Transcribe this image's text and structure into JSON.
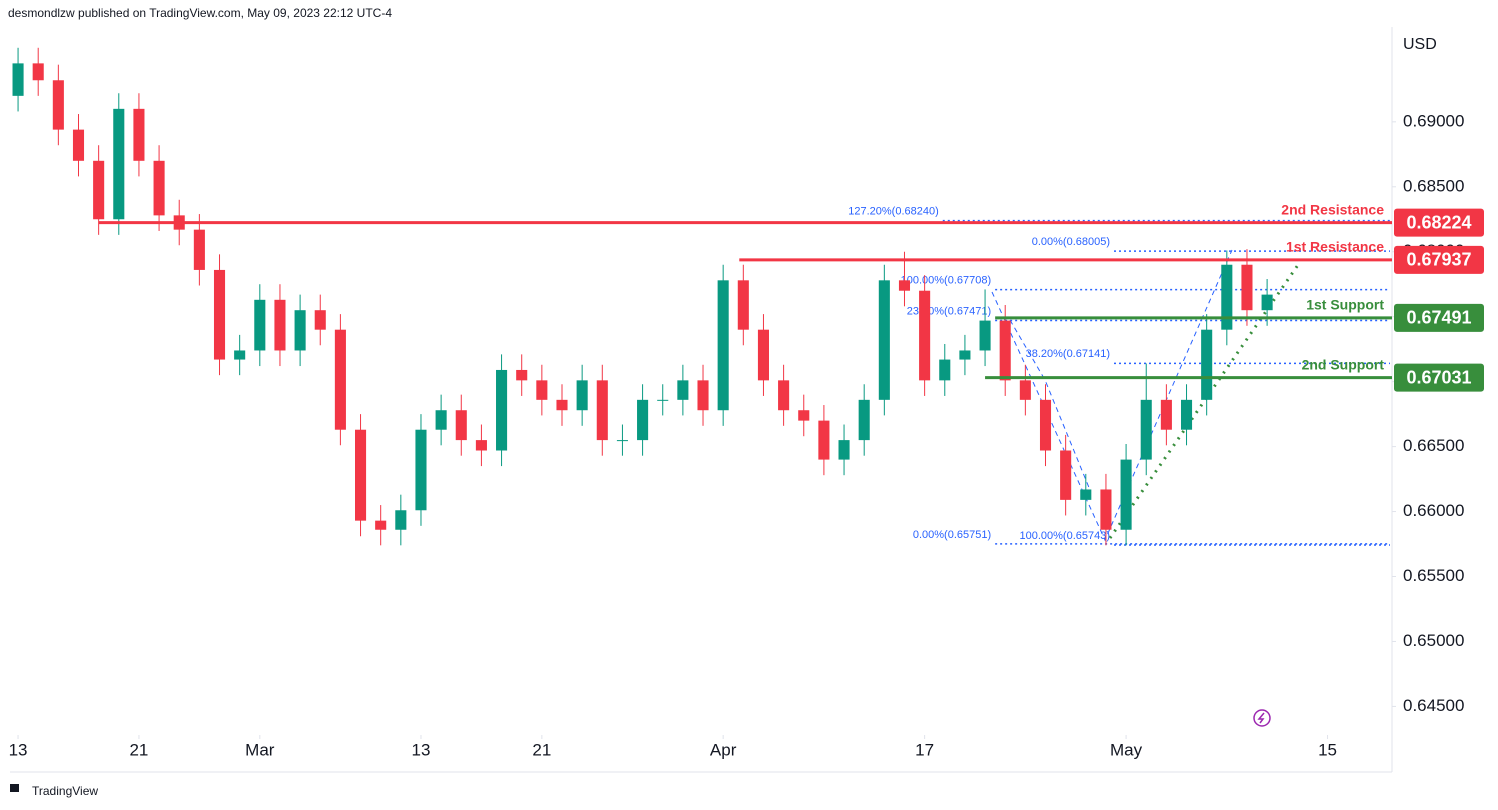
{
  "header": "desmondlzw published on TradingView.com, May 09, 2023 22:12 UTC-4",
  "footer": "TradingView",
  "chart_data": {
    "type": "candlestick",
    "currency": "USD",
    "up_color": "#089981",
    "down_color": "#f23645",
    "x": [
      0,
      1,
      2,
      3,
      4,
      5,
      6,
      7,
      8,
      9,
      10,
      11,
      12,
      13,
      14,
      15,
      16,
      17,
      18,
      19,
      20,
      21,
      22,
      23,
      24,
      25,
      26,
      27,
      28,
      29,
      30,
      31,
      32,
      33,
      34,
      35,
      36,
      37,
      38,
      39,
      40,
      41,
      42,
      43,
      44,
      45,
      46,
      47,
      48,
      49,
      50,
      51,
      52,
      53,
      54,
      55,
      56,
      57,
      58,
      59,
      60,
      61,
      62
    ],
    "open": [
      0.692,
      0.6945,
      0.6932,
      0.6894,
      0.687,
      0.6825,
      0.691,
      0.687,
      0.6828,
      0.6817,
      0.6786,
      0.6717,
      0.6724,
      0.6763,
      0.6724,
      0.6755,
      0.674,
      0.6663,
      0.6593,
      0.6586,
      0.6601,
      0.6663,
      0.6678,
      0.6655,
      0.6647,
      0.6709,
      0.6701,
      0.6686,
      0.6678,
      0.6701,
      0.6655,
      0.6655,
      0.6686,
      0.6686,
      0.6701,
      0.6678,
      0.6778,
      0.674,
      0.6701,
      0.6678,
      0.667,
      0.664,
      0.6655,
      0.6686,
      0.6778,
      0.677,
      0.6701,
      0.6717,
      0.6724,
      0.6747,
      0.6701,
      0.6686,
      0.6647,
      0.6609,
      0.6617,
      0.6586,
      0.664,
      0.6686,
      0.6663,
      0.6686,
      0.674,
      0.679,
      0.6755
    ],
    "high": [
      0.6957,
      0.6957,
      0.6944,
      0.6906,
      0.6882,
      0.6922,
      0.6922,
      0.6882,
      0.684,
      0.6829,
      0.6798,
      0.6736,
      0.6775,
      0.6775,
      0.6767,
      0.6767,
      0.6752,
      0.6675,
      0.6605,
      0.6613,
      0.6675,
      0.669,
      0.669,
      0.6667,
      0.6721,
      0.6721,
      0.6713,
      0.6698,
      0.6713,
      0.6713,
      0.6667,
      0.6698,
      0.6698,
      0.6713,
      0.6713,
      0.679,
      0.679,
      0.6752,
      0.6713,
      0.669,
      0.6682,
      0.6667,
      0.6698,
      0.679,
      0.68,
      0.6782,
      0.6729,
      0.6736,
      0.6771,
      0.6759,
      0.6713,
      0.6698,
      0.6659,
      0.6629,
      0.6629,
      0.6652,
      0.6714,
      0.6698,
      0.6698,
      0.6752,
      0.6801,
      0.6802,
      0.6779
    ],
    "low": [
      0.6908,
      0.692,
      0.6882,
      0.6858,
      0.6813,
      0.6813,
      0.6858,
      0.6816,
      0.6805,
      0.6774,
      0.6705,
      0.6705,
      0.6712,
      0.6712,
      0.6712,
      0.6728,
      0.6651,
      0.6581,
      0.6574,
      0.6574,
      0.6589,
      0.6651,
      0.6643,
      0.6635,
      0.6635,
      0.6689,
      0.6674,
      0.6666,
      0.6666,
      0.6643,
      0.6643,
      0.6643,
      0.6674,
      0.6674,
      0.6666,
      0.6666,
      0.6728,
      0.6689,
      0.6666,
      0.6658,
      0.6628,
      0.6628,
      0.6643,
      0.6674,
      0.6758,
      0.6689,
      0.6689,
      0.6705,
      0.6712,
      0.6689,
      0.6674,
      0.6635,
      0.6597,
      0.6597,
      0.6574,
      0.6574,
      0.6628,
      0.6651,
      0.6651,
      0.6674,
      0.6728,
      0.6743,
      0.6743
    ],
    "close": [
      0.6945,
      0.6932,
      0.6894,
      0.687,
      0.6825,
      0.691,
      0.687,
      0.6828,
      0.6817,
      0.6786,
      0.6717,
      0.6724,
      0.6763,
      0.6724,
      0.6755,
      0.674,
      0.6663,
      0.6593,
      0.6586,
      0.6601,
      0.6663,
      0.6678,
      0.6655,
      0.6647,
      0.6709,
      0.6701,
      0.6686,
      0.6678,
      0.6701,
      0.6655,
      0.6655,
      0.6686,
      0.6686,
      0.6701,
      0.6678,
      0.6778,
      0.674,
      0.6701,
      0.6678,
      0.667,
      0.664,
      0.6655,
      0.6686,
      0.6778,
      0.677,
      0.6701,
      0.6717,
      0.6724,
      0.6747,
      0.6701,
      0.6686,
      0.6647,
      0.6609,
      0.6617,
      0.6586,
      0.664,
      0.6686,
      0.6663,
      0.6686,
      0.674,
      0.679,
      0.6755,
      0.6767
    ],
    "xlim": [
      -0.4,
      68.1
    ],
    "xticks": [
      {
        "value": 0,
        "label": "13"
      },
      {
        "value": 6,
        "label": "21"
      },
      {
        "value": 12,
        "label": "Mar"
      },
      {
        "value": 20,
        "label": "13"
      },
      {
        "value": 26,
        "label": "21"
      },
      {
        "value": 35,
        "label": "Apr"
      },
      {
        "value": 45,
        "label": "17"
      },
      {
        "value": 55,
        "label": "May"
      },
      {
        "value": 65,
        "label": "15"
      }
    ],
    "ylim": [
      0.6428,
      0.6973
    ],
    "yticks": [
      {
        "value": 0.645,
        "label": "0.64500"
      },
      {
        "value": 0.65,
        "label": "0.65000"
      },
      {
        "value": 0.655,
        "label": "0.65500"
      },
      {
        "value": 0.66,
        "label": "0.66000"
      },
      {
        "value": 0.665,
        "label": "0.66500"
      },
      {
        "value": 0.67,
        "label": "0.67000"
      },
      {
        "value": 0.675,
        "label": "0.67500"
      },
      {
        "value": 0.68,
        "label": "0.68000"
      },
      {
        "value": 0.685,
        "label": "0.68500"
      },
      {
        "value": 0.69,
        "label": "0.69000"
      }
    ],
    "levels": [
      {
        "name": "2nd Resistance",
        "value": 0.68224,
        "color": "#f23645",
        "x_start": 4
      },
      {
        "name": "1st Resistance",
        "value": 0.67937,
        "color": "#f23645",
        "x_start": 35.8
      },
      {
        "name": "1st Support",
        "value": 0.67491,
        "color": "#388e3c",
        "x_start": 48.5
      },
      {
        "name": "2nd Support",
        "value": 0.67031,
        "color": "#388e3c",
        "x_start": 48
      }
    ],
    "fib": [
      {
        "text": "127.20%(0.68240)",
        "value": 0.6824,
        "x_start": 45.9
      },
      {
        "text": "0.00%(0.68005)",
        "value": 0.68005,
        "x_start": 54.4
      },
      {
        "text": "100.00%(0.67708)",
        "value": 0.67708,
        "x_start": 48.5
      },
      {
        "text": "23.60%(0.67471)",
        "value": 0.67471,
        "x_start": 48.5
      },
      {
        "text": "38.20%(0.67141)",
        "value": 0.67141,
        "x_start": 54.4
      },
      {
        "text": "0.00%(0.65751)",
        "value": 0.65751,
        "x_start": 48.5
      },
      {
        "text": "100.00%(0.65743)",
        "value": 0.65743,
        "x_start": 54.4
      }
    ]
  }
}
